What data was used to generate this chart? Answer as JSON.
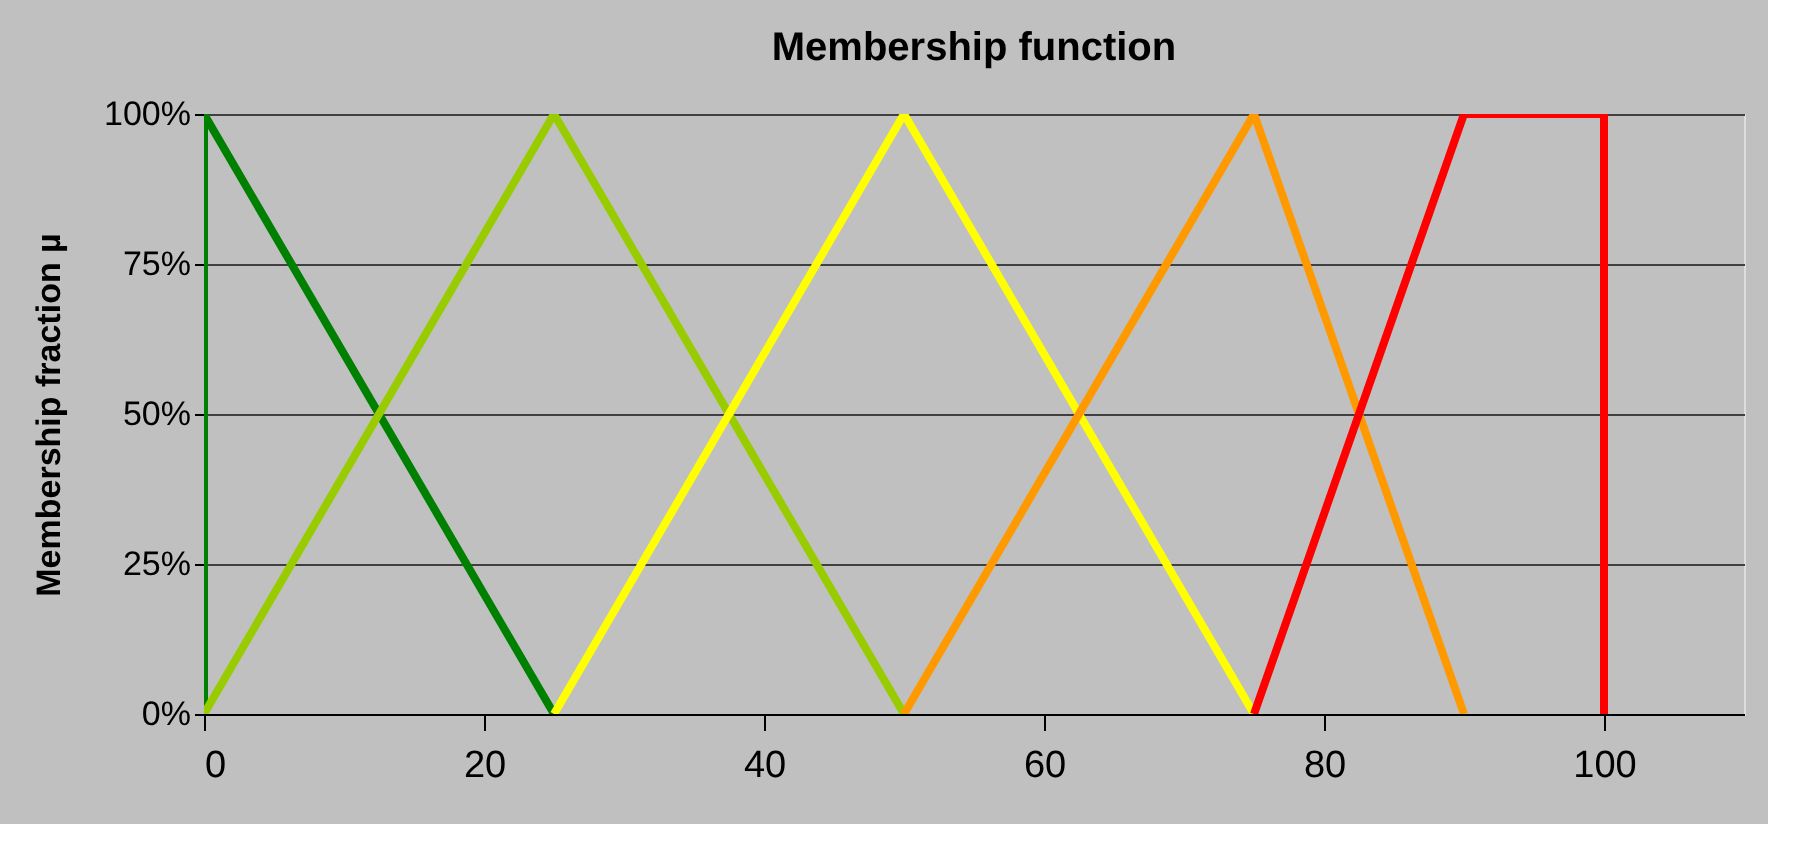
{
  "chart_data": {
    "type": "line",
    "title": "Membership function",
    "ylabel": "Membership fraction      µ",
    "xlim": [
      0,
      110
    ],
    "xticks": [
      0,
      20,
      40,
      60,
      80,
      100
    ],
    "ylim": [
      0,
      100
    ],
    "yticks": [
      {
        "value": 0,
        "label": "0%"
      },
      {
        "value": 25,
        "label": "25%"
      },
      {
        "value": 50,
        "label": "50%"
      },
      {
        "value": 75,
        "label": "75%"
      },
      {
        "value": 100,
        "label": "100%"
      }
    ],
    "grid": "y",
    "legend": false,
    "marker": "none",
    "line_style": "solid",
    "series": [
      {
        "color": "#008000",
        "x": [
          0,
          0,
          25
        ],
        "values": [
          0,
          100,
          0
        ]
      },
      {
        "color": "#99cc00",
        "x": [
          0,
          25,
          50
        ],
        "values": [
          0,
          100,
          0
        ]
      },
      {
        "color": "#ffff00",
        "x": [
          25,
          50,
          75
        ],
        "values": [
          0,
          100,
          0
        ]
      },
      {
        "color": "#ff9900",
        "x": [
          50,
          75,
          90
        ],
        "values": [
          0,
          100,
          0
        ]
      },
      {
        "color": "#ff0000",
        "x": [
          75,
          90,
          100,
          100
        ],
        "values": [
          0,
          100,
          100,
          0
        ]
      }
    ]
  }
}
